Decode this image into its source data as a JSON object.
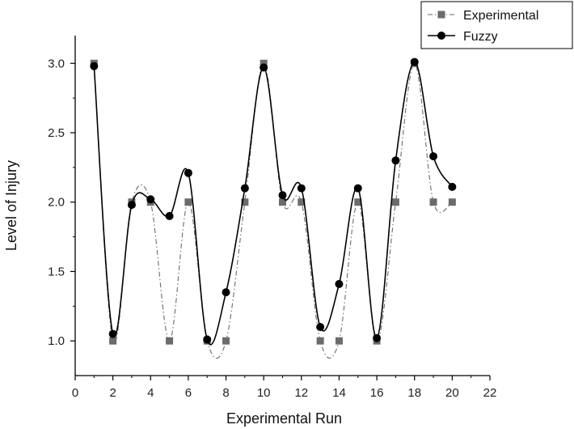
{
  "chart_data": {
    "type": "line",
    "title": "",
    "xlabel": "Experimental Run",
    "ylabel": "Level of Injury",
    "xlim": [
      0,
      22
    ],
    "ylim": [
      0.75,
      3.2
    ],
    "x_ticks": [
      0,
      2,
      4,
      6,
      8,
      10,
      12,
      14,
      16,
      18,
      20,
      22
    ],
    "y_ticks": [
      1.0,
      1.5,
      2.0,
      2.5,
      3.0
    ],
    "x_tick_labels": [
      "0",
      "2",
      "4",
      "6",
      "8",
      "10",
      "12",
      "14",
      "16",
      "18",
      "20",
      "22"
    ],
    "y_tick_labels": [
      "1.0",
      "1.5",
      "2.0",
      "2.5",
      "3.0"
    ],
    "grid": false,
    "legend_position": "top-right",
    "x": [
      1,
      2,
      3,
      4,
      5,
      6,
      7,
      8,
      9,
      10,
      11,
      12,
      13,
      14,
      15,
      16,
      17,
      18,
      19,
      20
    ],
    "series": [
      {
        "name": "Experimental",
        "marker": "square",
        "line_style": "dash-dot",
        "color": "#6b6b6b",
        "values": [
          3.0,
          1.0,
          2.0,
          2.0,
          1.0,
          2.0,
          1.0,
          1.0,
          2.0,
          3.0,
          2.0,
          2.0,
          1.0,
          1.0,
          2.0,
          1.0,
          2.0,
          3.0,
          2.0,
          2.0
        ]
      },
      {
        "name": "Fuzzy",
        "marker": "circle",
        "line_style": "solid",
        "color": "#000000",
        "values": [
          2.98,
          1.05,
          1.98,
          2.02,
          1.9,
          2.21,
          1.01,
          1.35,
          2.1,
          2.97,
          2.05,
          2.1,
          1.1,
          1.41,
          2.1,
          1.02,
          2.3,
          3.01,
          2.33,
          2.11
        ]
      }
    ]
  }
}
